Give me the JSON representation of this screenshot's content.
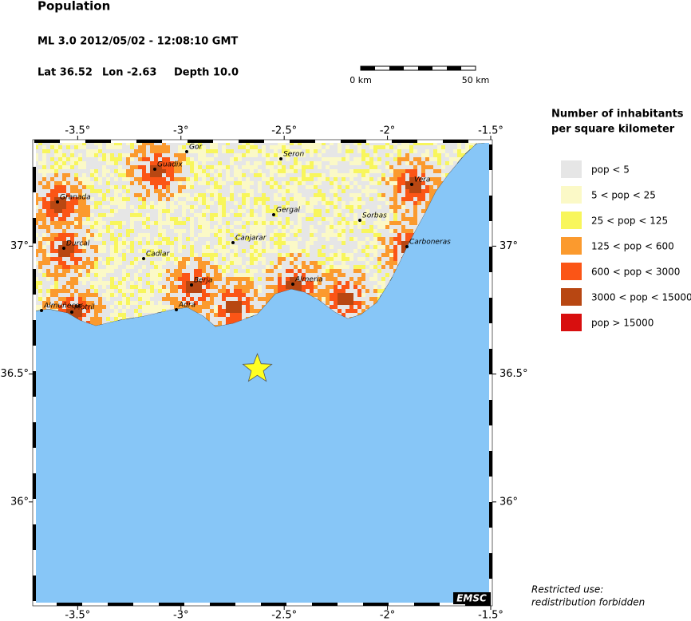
{
  "header": {
    "title": "Population",
    "event": "ML 3.0  2012/05/02 - 12:08:10 GMT",
    "location": [
      "Lat 36.52",
      "Lon  -2.63",
      "Depth  10.0"
    ]
  },
  "scale_bar": {
    "start": "0 km",
    "end": "50 km"
  },
  "chart_data": {
    "type": "map",
    "xlim": [
      -3.71,
      -1.5
    ],
    "ylim": [
      35.6,
      37.41
    ],
    "xticks": [
      {
        "value": -3.5,
        "label": "-3.5°"
      },
      {
        "value": -3,
        "label": "-3°"
      },
      {
        "value": -2.5,
        "label": "-2.5°"
      },
      {
        "value": -2,
        "label": "-2°"
      },
      {
        "value": -1.5,
        "label": "-1.5°"
      }
    ],
    "yticks": [
      {
        "value": 37,
        "label": "37°"
      },
      {
        "value": 36.5,
        "label": "36.5°"
      },
      {
        "value": 36,
        "label": "36°"
      }
    ],
    "epicenter": {
      "lon": -2.63,
      "lat": 36.52,
      "color": "#ffff22"
    },
    "sea_color": "#87c6f7",
    "cities": [
      "Granada",
      "Guadix",
      "Gor",
      "Seron",
      "Gergal",
      "Sorbas",
      "Vera",
      "Carboneras",
      "Canjarar",
      "Cadiar",
      "Durcal",
      "Berja",
      "Adra",
      "Almeria",
      "Motril",
      "Almuñecar"
    ]
  },
  "legend": {
    "title": [
      "Number of inhabitants",
      "per square kilometer"
    ],
    "items": [
      {
        "label": "pop < 5",
        "color": "#e6e6e6"
      },
      {
        "label": "5 < pop < 25",
        "color": "#fbf9c7"
      },
      {
        "label": "25 < pop < 125",
        "color": "#f8f65c"
      },
      {
        "label": "125 < pop < 600",
        "color": "#fb9a2e"
      },
      {
        "label": "600 < pop < 3000",
        "color": "#fb5516"
      },
      {
        "label": "3000 < pop < 15000",
        "color": "#b84712"
      },
      {
        "label": "pop > 15000",
        "color": "#d80f0f"
      }
    ]
  },
  "credit": "EMSC",
  "footer": [
    "Restricted use:",
    "redistribution forbidden"
  ]
}
